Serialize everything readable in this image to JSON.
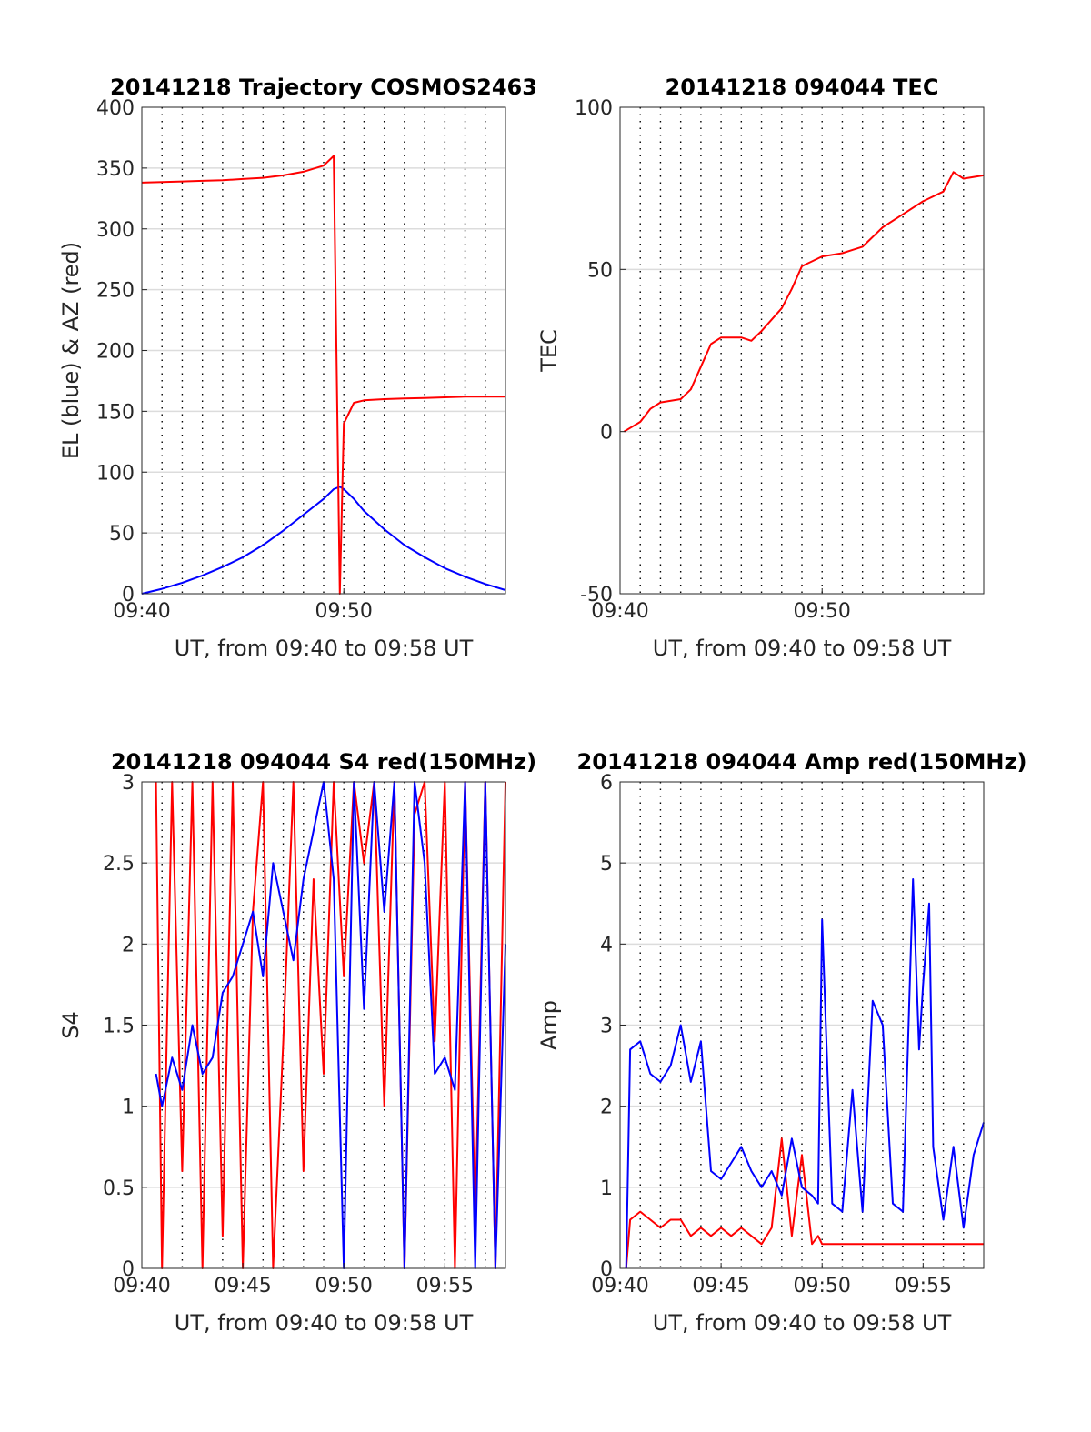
{
  "chart_data": [
    {
      "type": "line",
      "title": "20141218 Trajectory COSMOS2463",
      "xlabel": "UT, from 09:40 to 09:58 UT",
      "ylabel": "EL (blue) & AZ (red)",
      "xlim": [
        0,
        18
      ],
      "ylim": [
        0,
        400
      ],
      "xticks": [
        0,
        10
      ],
      "xtick_labels": [
        "09:40",
        "09:50"
      ],
      "yticks": [
        0,
        50,
        100,
        150,
        200,
        250,
        300,
        350,
        400
      ],
      "ytick_labels": [
        "0",
        "50",
        "100",
        "150",
        "200",
        "250",
        "300",
        "350",
        "400"
      ],
      "grid": "on",
      "x_minutes": [
        0,
        1,
        2,
        3,
        4,
        5,
        6,
        7,
        8,
        9,
        9.5,
        9.8,
        10,
        10.5,
        11,
        12,
        13,
        14,
        15,
        16,
        17,
        18
      ],
      "series": [
        {
          "color": "#0000ff",
          "values": [
            0,
            4,
            9,
            15,
            22,
            30,
            40,
            52,
            65,
            78,
            86,
            88,
            86,
            78,
            68,
            53,
            40,
            30,
            21,
            14,
            8,
            3
          ]
        },
        {
          "color": "#ff0000",
          "values": [
            338,
            338.5,
            339,
            339.5,
            340,
            341,
            342,
            344,
            347,
            352,
            360,
            0,
            140,
            157,
            159,
            160,
            160.5,
            161,
            161.5,
            162,
            162,
            162
          ]
        }
      ]
    },
    {
      "type": "line",
      "title": "20141218 094044 TEC",
      "xlabel": "UT, from 09:40 to 09:58 UT",
      "ylabel": "TEC",
      "xlim": [
        0,
        18
      ],
      "ylim": [
        -50,
        100
      ],
      "xticks": [
        0,
        10
      ],
      "xtick_labels": [
        "09:40",
        "09:50"
      ],
      "yticks": [
        -50,
        0,
        50,
        100
      ],
      "ytick_labels": [
        "-50",
        "0",
        "50",
        "100"
      ],
      "grid": "on",
      "x_minutes": [
        0.2,
        1,
        1.5,
        2,
        3,
        3.5,
        4,
        4.5,
        5,
        6,
        6.5,
        7,
        8,
        8.5,
        9,
        10,
        11,
        11.5,
        12,
        13,
        14,
        15,
        16,
        16.5,
        17,
        18
      ],
      "series": [
        {
          "color": "#ff0000",
          "values": [
            0,
            3,
            7,
            9,
            10,
            13,
            20,
            27,
            29,
            29,
            28,
            31,
            38,
            44,
            51,
            54,
            55,
            56,
            57,
            63,
            67,
            71,
            74,
            80,
            78,
            79
          ]
        }
      ]
    },
    {
      "type": "line",
      "title": "20141218 094044 S4 red(150MHz)",
      "xlabel": "UT, from 09:40 to 09:58 UT",
      "ylabel": "S4",
      "xlim": [
        0,
        18
      ],
      "ylim": [
        0,
        3
      ],
      "xticks": [
        0,
        5,
        10,
        15
      ],
      "xtick_labels": [
        "09:40",
        "09:45",
        "09:50",
        "09:55"
      ],
      "yticks": [
        0,
        0.5,
        1,
        1.5,
        2,
        2.5,
        3
      ],
      "ytick_labels": [
        "0",
        "0.5",
        "1",
        "1.5",
        "2",
        "2.5",
        "3"
      ],
      "grid": "on",
      "x_minutes": [
        0.7,
        1,
        1.5,
        2,
        2.5,
        3,
        3.5,
        4,
        4.5,
        5,
        5.5,
        6,
        6.5,
        7,
        7.5,
        8,
        8.5,
        9,
        9.5,
        10,
        10.5,
        11,
        11.5,
        12,
        12.5,
        13,
        13.5,
        14,
        14.5,
        15,
        15.5,
        16,
        16.5,
        17,
        17.5,
        18
      ],
      "series": [
        {
          "color": "#ff0000",
          "values": [
            3,
            0,
            3,
            0.6,
            3,
            0,
            3,
            0.2,
            3,
            0,
            2.2,
            3,
            0,
            1.4,
            3,
            0.6,
            2.4,
            1.2,
            3,
            1.8,
            3,
            2.5,
            3,
            1,
            3,
            0,
            2.8,
            3,
            1.4,
            3,
            0,
            3,
            0.3,
            3,
            0,
            3
          ]
        },
        {
          "color": "#0000ff",
          "values": [
            1.2,
            1,
            1.3,
            1.1,
            1.5,
            1.2,
            1.3,
            1.7,
            1.8,
            2,
            2.2,
            1.8,
            2.5,
            2.2,
            1.9,
            2.4,
            2.7,
            3,
            2.4,
            0,
            3,
            1.6,
            3,
            2.2,
            3,
            0,
            3,
            2.5,
            1.2,
            1.3,
            1.1,
            3,
            0,
            3,
            0,
            2
          ]
        }
      ]
    },
    {
      "type": "line",
      "title": "20141218 094044 Amp red(150MHz)",
      "xlabel": "UT, from 09:40 to 09:58 UT",
      "ylabel": "Amp",
      "xlim": [
        0,
        18
      ],
      "ylim": [
        0,
        6
      ],
      "xticks": [
        0,
        5,
        10,
        15
      ],
      "xtick_labels": [
        "09:40",
        "09:45",
        "09:50",
        "09:55"
      ],
      "yticks": [
        0,
        1,
        2,
        3,
        4,
        5,
        6
      ],
      "ytick_labels": [
        "0",
        "1",
        "2",
        "3",
        "4",
        "5",
        "6"
      ],
      "grid": "on",
      "x_minutes": [
        0.3,
        0.5,
        1,
        1.5,
        2,
        2.5,
        3,
        3.5,
        4,
        4.5,
        5,
        5.5,
        6,
        6.5,
        7,
        7.5,
        8,
        8.5,
        9,
        9.5,
        9.8,
        10,
        10.5,
        11,
        11.5,
        12,
        12.5,
        13,
        13.5,
        14,
        14.5,
        14.8,
        15,
        15.3,
        15.5,
        16,
        16.5,
        17,
        17.5,
        18
      ],
      "series": [
        {
          "color": "#ff0000",
          "values": [
            0,
            0.6,
            0.7,
            0.6,
            0.5,
            0.6,
            0.6,
            0.4,
            0.5,
            0.4,
            0.5,
            0.4,
            0.5,
            0.4,
            0.3,
            0.5,
            1.6,
            0.4,
            1.4,
            0.3,
            0.4,
            0.3,
            0.3,
            0.3,
            0.3,
            0.3,
            0.3,
            0.3,
            0.3,
            0.3,
            0.3,
            0.3,
            0.3,
            0.3,
            0.3,
            0.3,
            0.3,
            0.3,
            0.3,
            0.3
          ]
        },
        {
          "color": "#0000ff",
          "values": [
            0,
            2.7,
            2.8,
            2.4,
            2.3,
            2.5,
            3,
            2.3,
            2.8,
            1.2,
            1.1,
            1.3,
            1.5,
            1.2,
            1,
            1.2,
            0.9,
            1.6,
            1,
            0.9,
            0.8,
            4.3,
            0.8,
            0.7,
            2.2,
            0.7,
            3.3,
            3,
            0.8,
            0.7,
            4.8,
            2.7,
            3.5,
            4.5,
            1.5,
            0.6,
            1.5,
            0.5,
            1.4,
            1.8
          ]
        }
      ]
    }
  ]
}
